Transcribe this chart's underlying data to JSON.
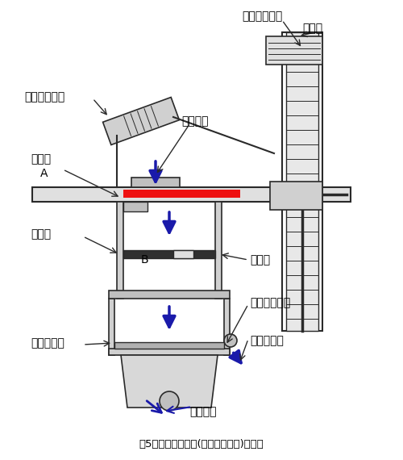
{
  "title": "図5　通気度試験機(フラジール形)の構造",
  "bg_color": "#ffffff",
  "line_color": "#2a2a2a",
  "arrow_color": "#1a1aaa",
  "red_bar_color": "#ee1111",
  "labels": {
    "vertical_manometer": "垂直形気圧計",
    "oil_tank": "貯油槽",
    "inclined_manometer": "傾斜形気圧計",
    "clamp": "クランプ",
    "specimen": "試験片",
    "A": "A",
    "partition_wall": "仕切壁",
    "B": "B",
    "air_hole": "空気孔",
    "air_deflector": "空気そらせ板",
    "blower": "吹込ファン",
    "air_outlet": "空気放出口",
    "motor": "モーター"
  },
  "figsize": [
    5.0,
    5.7
  ],
  "dpi": 100
}
